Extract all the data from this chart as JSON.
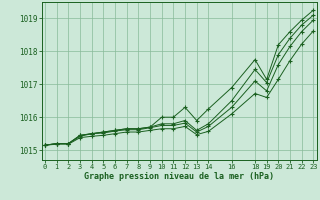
{
  "background_color": "#cce8d8",
  "grid_color": "#88bb99",
  "line_color": "#1a6020",
  "xlabel": "Graphe pression niveau de la mer (hPa)",
  "ylim": [
    1014.7,
    1019.5
  ],
  "yticks": [
    1015,
    1016,
    1017,
    1018,
    1019
  ],
  "xlim": [
    -0.3,
    23.3
  ],
  "x_vals": [
    0,
    1,
    2,
    3,
    4,
    5,
    6,
    7,
    8,
    9,
    10,
    11,
    12,
    13,
    14,
    16,
    18,
    19,
    20,
    21,
    22,
    23
  ],
  "xtick_pos": [
    0,
    1,
    2,
    3,
    4,
    5,
    6,
    7,
    8,
    9,
    10,
    11,
    12,
    13,
    14,
    16,
    18,
    19,
    20,
    21,
    22,
    23
  ],
  "xtick_labels": [
    "0",
    "1",
    "2",
    "3",
    "4",
    "5",
    "6",
    "7",
    "8",
    "9",
    "10",
    "11",
    "12",
    "13",
    "14",
    "16",
    "18",
    "19",
    "20",
    "21",
    "22",
    "23"
  ],
  "series": [
    [
      1015.15,
      1015.2,
      1015.2,
      1015.45,
      1015.5,
      1015.55,
      1015.6,
      1015.65,
      1015.65,
      1015.7,
      1016.0,
      1016.0,
      1016.3,
      1015.9,
      1016.25,
      1016.9,
      1017.75,
      1017.15,
      1018.2,
      1018.6,
      1018.95,
      1019.25
    ],
    [
      1015.15,
      1015.2,
      1015.2,
      1015.45,
      1015.5,
      1015.55,
      1015.6,
      1015.65,
      1015.65,
      1015.7,
      1015.8,
      1015.8,
      1015.9,
      1015.6,
      1015.8,
      1016.5,
      1017.45,
      1017.05,
      1017.9,
      1018.4,
      1018.8,
      1019.1
    ],
    [
      1015.15,
      1015.2,
      1015.2,
      1015.42,
      1015.5,
      1015.52,
      1015.58,
      1015.62,
      1015.62,
      1015.68,
      1015.75,
      1015.75,
      1015.82,
      1015.55,
      1015.72,
      1016.3,
      1017.1,
      1016.8,
      1017.6,
      1018.15,
      1018.6,
      1018.95
    ],
    [
      1015.15,
      1015.18,
      1015.18,
      1015.38,
      1015.42,
      1015.45,
      1015.5,
      1015.55,
      1015.55,
      1015.6,
      1015.65,
      1015.65,
      1015.72,
      1015.47,
      1015.57,
      1016.1,
      1016.72,
      1016.6,
      1017.15,
      1017.72,
      1018.22,
      1018.62
    ]
  ]
}
